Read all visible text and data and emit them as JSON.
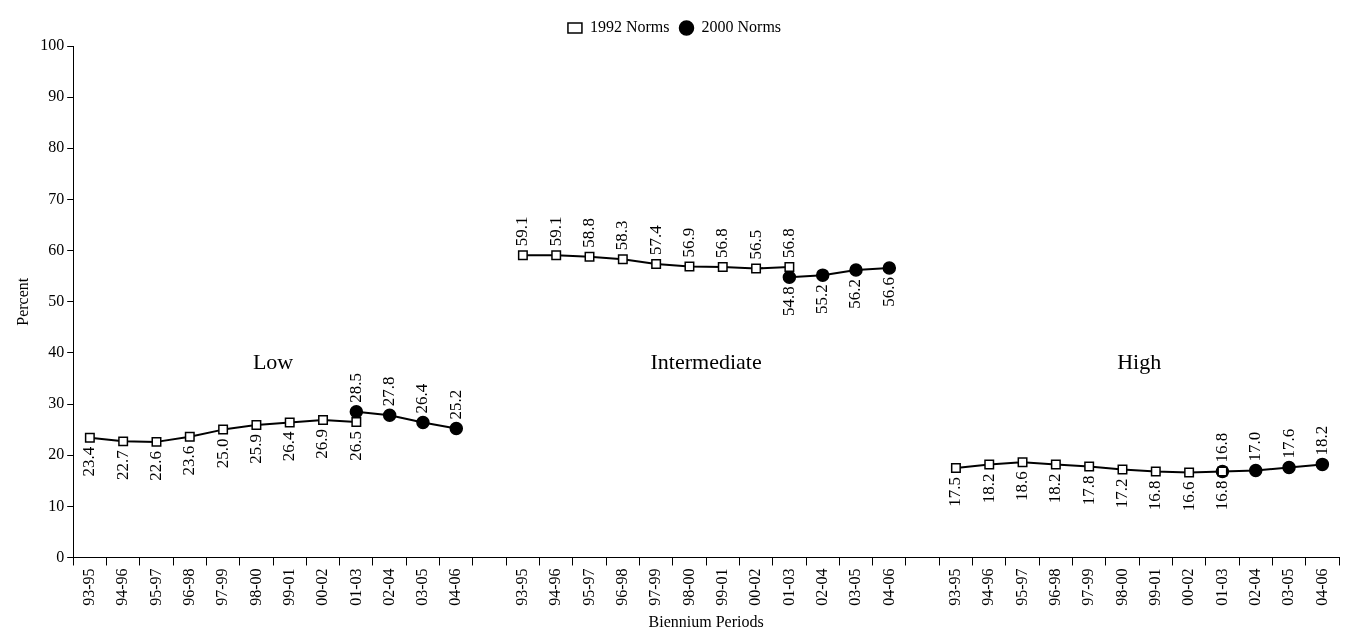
{
  "chart_data": {
    "type": "line",
    "xlabel": "Biennium Periods",
    "ylabel": "Percent",
    "categories": [
      "93-95",
      "94-96",
      "95-97",
      "96-98",
      "97-99",
      "98-00",
      "99-01",
      "00-02",
      "01-03",
      "02-04",
      "03-05",
      "04-06",
      null,
      "93-95",
      "94-96",
      "95-97",
      "96-98",
      "97-99",
      "98-00",
      "99-01",
      "00-02",
      "01-03",
      "02-04",
      "03-05",
      "04-06",
      null,
      "93-95",
      "94-96",
      "95-97",
      "96-98",
      "97-99",
      "98-00",
      "99-01",
      "00-02",
      "01-03",
      "02-04",
      "03-05",
      "04-06"
    ],
    "series": [
      {
        "name": "1992 Norms",
        "color": "#000000",
        "marker": "square",
        "values": [
          23.4,
          22.7,
          22.6,
          23.6,
          25.0,
          25.9,
          26.4,
          26.9,
          26.5,
          null,
          null,
          null,
          null,
          59.1,
          59.1,
          58.8,
          58.3,
          57.4,
          56.9,
          56.8,
          56.5,
          56.8,
          null,
          null,
          null,
          null,
          17.5,
          18.2,
          18.6,
          18.2,
          17.8,
          17.2,
          16.8,
          16.6,
          16.8,
          null,
          null,
          null
        ],
        "value_labels": [
          "23.4",
          "22.7",
          "22.6",
          "23.6",
          "25.0",
          "25.9",
          "26.4",
          "26.9",
          "26.5",
          null,
          null,
          null,
          null,
          "59.1",
          "59.1",
          "58.8",
          "58.3",
          "57.4",
          "56.9",
          "56.8",
          "56.5",
          "56.8",
          null,
          null,
          null,
          null,
          "17.5",
          "18.2",
          "18.6",
          "18.2",
          "17.8",
          "17.2",
          "16.8",
          "16.6",
          "16.8",
          null,
          null,
          null
        ]
      },
      {
        "name": "2000 Norms",
        "color": "#000000",
        "marker": "circle",
        "values": [
          null,
          null,
          null,
          null,
          null,
          null,
          null,
          null,
          28.5,
          27.8,
          26.4,
          25.2,
          null,
          null,
          null,
          null,
          null,
          null,
          null,
          null,
          null,
          54.8,
          55.2,
          56.2,
          56.6,
          null,
          null,
          null,
          null,
          null,
          null,
          null,
          null,
          null,
          16.8,
          17.0,
          17.6,
          18.2
        ],
        "value_labels": [
          null,
          null,
          null,
          null,
          null,
          null,
          null,
          null,
          "28.5",
          "27.8",
          "26.4",
          "25.2",
          null,
          null,
          null,
          null,
          null,
          null,
          null,
          null,
          null,
          "54.8",
          "55.2",
          "56.2",
          "56.6",
          null,
          null,
          null,
          null,
          null,
          null,
          null,
          null,
          null,
          "16.8",
          "17.0",
          "17.6",
          "18.2"
        ]
      }
    ],
    "annotations": [
      "Low",
      "Intermediate",
      "High"
    ],
    "ylim": [
      0,
      100
    ],
    "yticks": [
      0,
      10,
      20,
      30,
      40,
      50,
      60,
      70,
      80,
      90,
      100
    ],
    "grid": false,
    "legend": "top",
    "line_style": "solid"
  }
}
